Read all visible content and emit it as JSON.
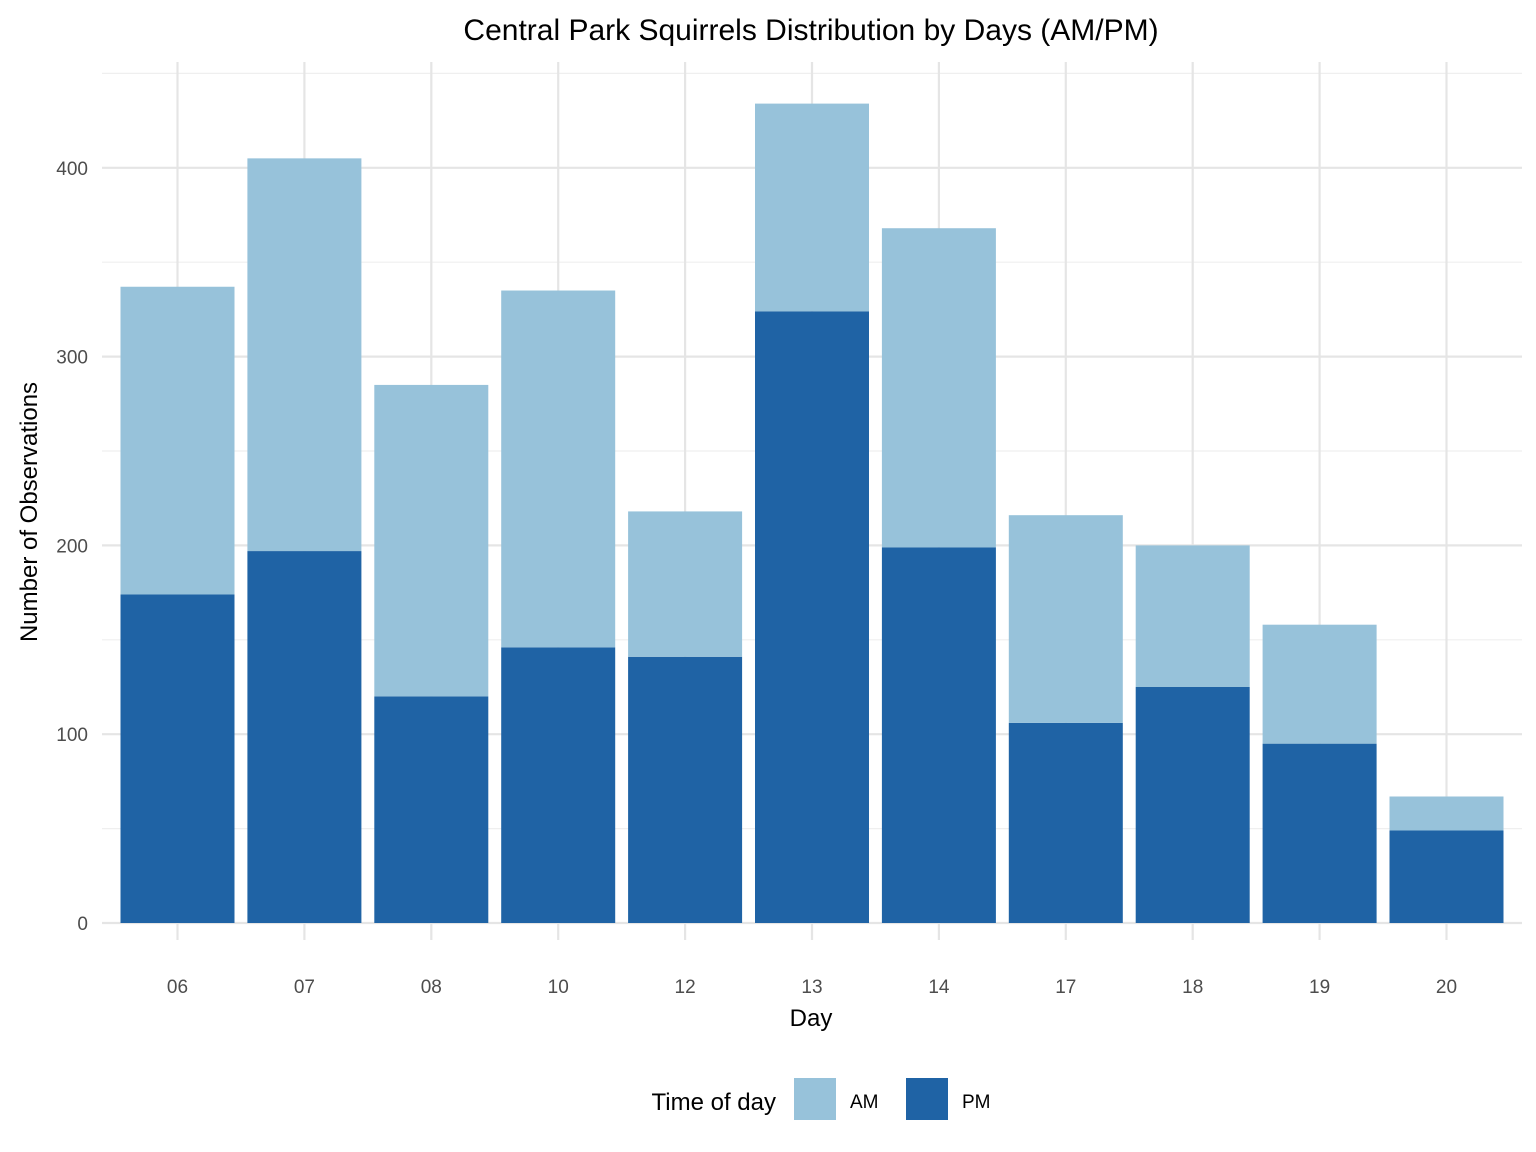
{
  "chart_data": {
    "type": "bar",
    "stacked": true,
    "title": "Central Park Squirrels Distribution by Days (AM/PM)",
    "xlabel": "Day",
    "ylabel": "Number of Observations",
    "categories": [
      "06",
      "07",
      "08",
      "10",
      "12",
      "13",
      "14",
      "17",
      "18",
      "19",
      "20"
    ],
    "series": [
      {
        "name": "PM",
        "color": "#1f63a5",
        "values": [
          174,
          197,
          120,
          146,
          141,
          324,
          199,
          106,
          125,
          95,
          49
        ]
      },
      {
        "name": "AM",
        "color": "#97c2da",
        "values": [
          163,
          208,
          165,
          189,
          77,
          110,
          169,
          110,
          75,
          63,
          18
        ]
      }
    ],
    "ylim": [
      0,
      450
    ],
    "yticks": [
      "0",
      "100",
      "200",
      "300",
      "400"
    ],
    "grid": true,
    "legend": {
      "title": "Time of day",
      "position": "bottom",
      "entries": [
        "AM",
        "PM"
      ]
    }
  }
}
